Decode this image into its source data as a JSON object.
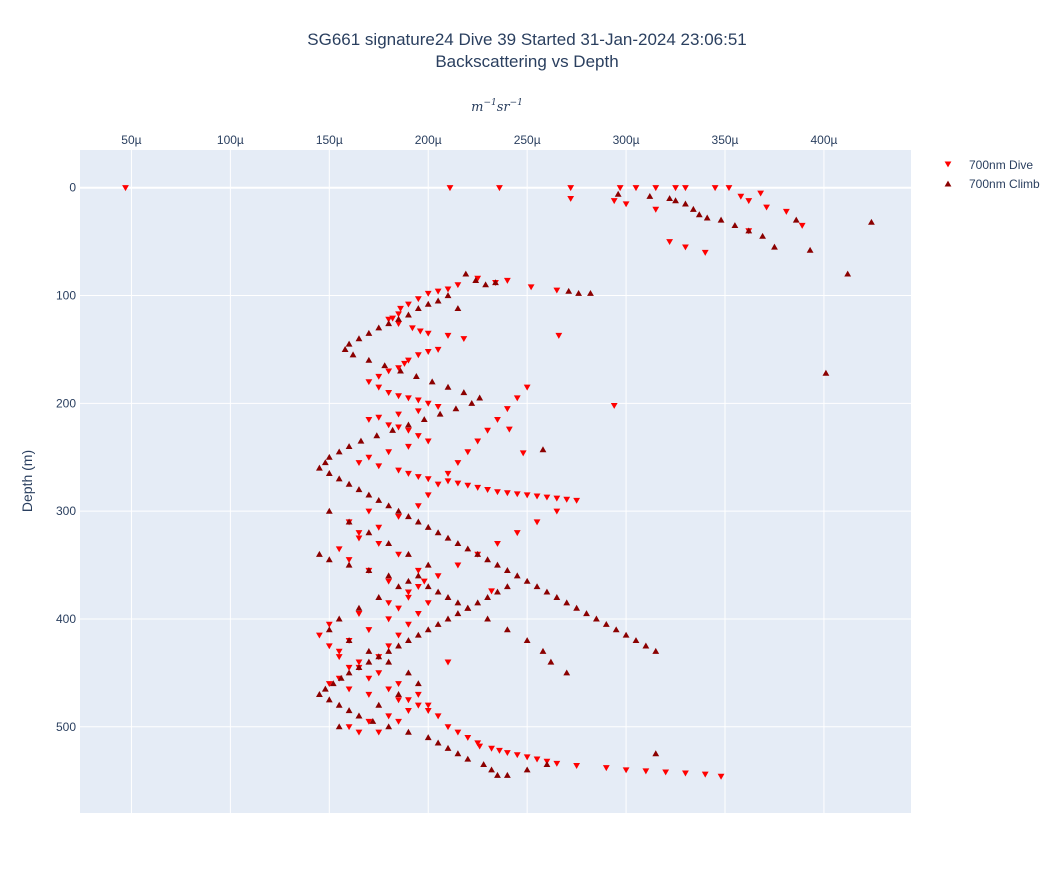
{
  "colors": {
    "dive": "#ff0000",
    "climb": "#8b0000",
    "plot_bg": "#e5ecf6",
    "grid": "#ffffff",
    "text": "#2a3f5f"
  },
  "chart_data": {
    "type": "scatter",
    "title_line1": "SG661 signature24 Dive 39 Started 31-Jan-2024 23:06:51",
    "title_line2": "Backscattering vs Depth",
    "xlabel_unit": "m",
    "xlabel_unit_exp1": "−1",
    "xlabel_unit_mid": "sr",
    "xlabel_unit_exp2": "−1",
    "ylabel": "Depth (m)",
    "x_axis_position": "top",
    "y_reversed": true,
    "xlim": [
      2.4e-05,
      0.000444
    ],
    "ylim": [
      580,
      -35
    ],
    "grid": true,
    "legend_position": "top-right",
    "x_ticks": [
      {
        "value": 5e-05,
        "label": "50µ"
      },
      {
        "value": 0.0001,
        "label": "100µ"
      },
      {
        "value": 0.00015,
        "label": "150µ"
      },
      {
        "value": 0.0002,
        "label": "200µ"
      },
      {
        "value": 0.00025,
        "label": "250µ"
      },
      {
        "value": 0.0003,
        "label": "300µ"
      },
      {
        "value": 0.00035,
        "label": "350µ"
      },
      {
        "value": 0.0004,
        "label": "400µ"
      }
    ],
    "y_ticks": [
      {
        "value": 0,
        "label": "0"
      },
      {
        "value": 100,
        "label": "100"
      },
      {
        "value": 200,
        "label": "200"
      },
      {
        "value": 300,
        "label": "300"
      },
      {
        "value": 400,
        "label": "400"
      },
      {
        "value": 500,
        "label": "500"
      }
    ],
    "series": [
      {
        "name": "700nm Dive",
        "marker": "triangle-down",
        "color": "#ff0000",
        "x": [
          47,
          211,
          236,
          272,
          297,
          305,
          315,
          325,
          330,
          345,
          352,
          368,
          358,
          362,
          371,
          381,
          389,
          362,
          340,
          330,
          322,
          315,
          300,
          294,
          272,
          265,
          252,
          240,
          234,
          225,
          215,
          210,
          205,
          200,
          195,
          190,
          186,
          185,
          182,
          180,
          185,
          192,
          196,
          200,
          210,
          218,
          205,
          200,
          195,
          190,
          188,
          185,
          180,
          175,
          170,
          175,
          180,
          185,
          190,
          195,
          200,
          205,
          195,
          185,
          175,
          170,
          180,
          185,
          190,
          195,
          200,
          190,
          180,
          170,
          165,
          175,
          185,
          190,
          195,
          200,
          210,
          215,
          220,
          225,
          230,
          235,
          240,
          245,
          250,
          255,
          260,
          265,
          270,
          275,
          265,
          255,
          245,
          235,
          225,
          215,
          205,
          195,
          190,
          185,
          180,
          170,
          160,
          155,
          165,
          175,
          185,
          195,
          200,
          205,
          210,
          215,
          220,
          225,
          226,
          232,
          236,
          240,
          245,
          250,
          255,
          260,
          265,
          275,
          290,
          300,
          310,
          320,
          330,
          340,
          348,
          294,
          266,
          248,
          241,
          232,
          210,
          170,
          160,
          165,
          175,
          185,
          195,
          198,
          190,
          180,
          165,
          150,
          145,
          150,
          155,
          160,
          170,
          180,
          190,
          200,
          185,
          175,
          165,
          160,
          170,
          180,
          190,
          195,
          185,
          170,
          160,
          150,
          155,
          165,
          175,
          180,
          185,
          190,
          195,
          200,
          190,
          180,
          170,
          160,
          155,
          165,
          175,
          185,
          195,
          200,
          205,
          210,
          215,
          220,
          225,
          230,
          235,
          240,
          245,
          250
        ],
        "y": [
          0,
          0,
          0,
          0,
          0,
          0,
          0,
          0,
          0,
          0,
          0,
          5,
          8,
          12,
          18,
          22,
          35,
          40,
          60,
          55,
          50,
          20,
          15,
          12,
          10,
          95,
          92,
          86,
          88,
          84,
          90,
          94,
          96,
          98,
          103,
          108,
          112,
          117,
          121,
          122,
          126,
          130,
          133,
          135,
          137,
          140,
          150,
          152,
          155,
          160,
          163,
          167,
          170,
          175,
          180,
          185,
          190,
          193,
          195,
          197,
          200,
          203,
          207,
          210,
          213,
          215,
          220,
          222,
          225,
          230,
          235,
          240,
          245,
          250,
          255,
          258,
          262,
          265,
          268,
          270,
          272,
          274,
          276,
          278,
          280,
          282,
          283,
          284,
          285,
          286,
          287,
          288,
          289,
          290,
          300,
          310,
          320,
          330,
          340,
          350,
          360,
          370,
          380,
          390,
          400,
          410,
          420,
          430,
          440,
          450,
          460,
          470,
          480,
          490,
          500,
          505,
          510,
          515,
          518,
          520,
          522,
          524,
          526,
          528,
          530,
          532,
          534,
          536,
          538,
          540,
          541,
          542,
          543,
          544,
          546,
          202,
          137,
          246,
          224,
          374,
          440,
          300,
          310,
          320,
          330,
          340,
          355,
          365,
          375,
          385,
          395,
          405,
          415,
          425,
          435,
          445,
          455,
          465,
          475,
          485,
          495,
          505,
          505,
          500,
          495,
          490,
          485,
          480,
          475,
          470,
          465,
          460,
          455,
          445,
          435,
          425,
          415,
          405,
          395,
          385,
          375,
          365,
          355,
          345,
          335,
          325,
          315,
          305,
          295,
          285,
          275,
          265,
          255,
          245,
          235,
          225,
          215,
          205,
          195,
          185
        ]
      },
      {
        "name": "700nm Climb",
        "marker": "triangle-up",
        "color": "#8b0000",
        "x": [
          424,
          412,
          401,
          393,
          386,
          375,
          369,
          362,
          355,
          348,
          341,
          337,
          334,
          330,
          325,
          322,
          312,
          296,
          282,
          276,
          271,
          258,
          234,
          229,
          224,
          219,
          215,
          210,
          205,
          200,
          195,
          190,
          185,
          180,
          175,
          170,
          165,
          160,
          158,
          162,
          170,
          178,
          186,
          194,
          202,
          210,
          218,
          226,
          222,
          214,
          206,
          198,
          190,
          182,
          174,
          166,
          160,
          155,
          150,
          148,
          145,
          150,
          155,
          160,
          165,
          170,
          175,
          180,
          185,
          190,
          195,
          200,
          205,
          210,
          215,
          220,
          225,
          230,
          235,
          240,
          245,
          250,
          255,
          260,
          265,
          270,
          275,
          280,
          285,
          290,
          295,
          300,
          305,
          310,
          315,
          150,
          160,
          170,
          180,
          190,
          200,
          195,
          185,
          175,
          165,
          155,
          150,
          160,
          170,
          180,
          190,
          195,
          185,
          175,
          165,
          155,
          145,
          150,
          160,
          170,
          180,
          190,
          200,
          205,
          210,
          215,
          220,
          230,
          240,
          250,
          258,
          262,
          270,
          315,
          260,
          250,
          240,
          235,
          232,
          228,
          220,
          215,
          210,
          205,
          200,
          190,
          180,
          172,
          165,
          160,
          155,
          150,
          145,
          148,
          152,
          156,
          160,
          165,
          170,
          175,
          180,
          185,
          190,
          195,
          200,
          205,
          210,
          215,
          220,
          225,
          230,
          235,
          240
        ],
        "y": [
          32,
          80,
          172,
          58,
          30,
          55,
          45,
          40,
          35,
          30,
          28,
          25,
          20,
          15,
          12,
          10,
          8,
          6,
          98,
          98,
          96,
          243,
          88,
          90,
          86,
          80,
          112,
          100,
          105,
          108,
          112,
          118,
          122,
          126,
          130,
          135,
          140,
          145,
          150,
          155,
          160,
          165,
          170,
          175,
          180,
          185,
          190,
          195,
          200,
          205,
          210,
          215,
          220,
          225,
          230,
          235,
          240,
          245,
          250,
          255,
          260,
          265,
          270,
          275,
          280,
          285,
          290,
          295,
          300,
          305,
          310,
          315,
          320,
          325,
          330,
          335,
          340,
          345,
          350,
          355,
          360,
          365,
          370,
          375,
          380,
          385,
          390,
          395,
          400,
          405,
          410,
          415,
          420,
          425,
          430,
          300,
          310,
          320,
          330,
          340,
          350,
          360,
          370,
          380,
          390,
          400,
          410,
          420,
          430,
          440,
          450,
          460,
          470,
          480,
          490,
          500,
          340,
          345,
          350,
          355,
          360,
          365,
          370,
          375,
          380,
          385,
          390,
          400,
          410,
          420,
          430,
          440,
          450,
          525,
          535,
          540,
          545,
          545,
          540,
          535,
          530,
          525,
          520,
          515,
          510,
          505,
          500,
          495,
          490,
          485,
          480,
          475,
          470,
          465,
          460,
          455,
          450,
          445,
          440,
          435,
          430,
          425,
          420,
          415,
          410,
          405,
          400,
          395,
          390,
          385,
          380,
          375,
          370
        ]
      }
    ]
  }
}
